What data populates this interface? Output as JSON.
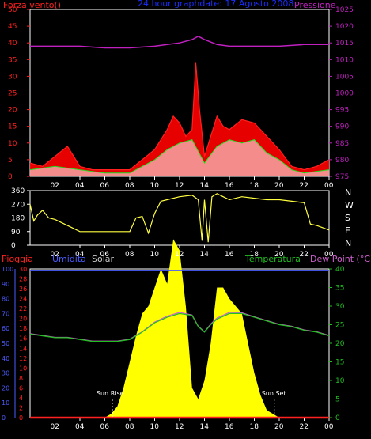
{
  "colors": {
    "wind": "#ff2020",
    "gust_fill": "#ff0000",
    "pressure": "#c020c0",
    "direction": "#ffff40",
    "rain": "#ff2020",
    "humidity": "#4a5cff",
    "solar": "#ffff00",
    "temperature": "#20c020",
    "dew_point": "#d060d0",
    "axis_white": "#ffffff",
    "title_blue": "#1a2cff"
  },
  "header": {
    "left_label": "Forza vento()",
    "title": "24 hour graphdate: 17 Agosto 2008",
    "right_label": "Pressione"
  },
  "legend_bottom": {
    "rain": "Pioggia",
    "humidity": "Umidita",
    "solar": "Solar",
    "temperature": "Temperatura",
    "dew_point": "Dew Point (°C)"
  },
  "compass": [
    "N",
    "W",
    "S",
    "E",
    "N"
  ],
  "annotations": {
    "sunrise": "Sun Rise",
    "sunset": "Sun Set"
  },
  "chart_data": [
    {
      "type": "line",
      "name": "wind-pressure",
      "x_ticks": [
        "02",
        "04",
        "06",
        "08",
        "10",
        "12",
        "14",
        "16",
        "18",
        "20",
        "22",
        "00"
      ],
      "y_left": {
        "label": "Forza vento()",
        "range": [
          0,
          50
        ],
        "ticks": [
          0,
          5,
          10,
          15,
          20,
          25,
          30,
          35,
          40,
          45,
          50
        ]
      },
      "y_right": {
        "label": "Pressione",
        "range": [
          975,
          1025
        ],
        "ticks": [
          975,
          980,
          985,
          990,
          995,
          1000,
          1005,
          1010,
          1015,
          1020,
          1025
        ]
      },
      "series": [
        {
          "key": "gust",
          "x": [
            0,
            1,
            2,
            3,
            4,
            5,
            6,
            7,
            8,
            9,
            10,
            11,
            11.5,
            12,
            12.5,
            13,
            13.3,
            13.6,
            14,
            14.5,
            15,
            15.5,
            16,
            17,
            18,
            19,
            20,
            21,
            22,
            23,
            24
          ],
          "values": [
            4,
            3,
            6,
            9,
            3,
            2,
            2,
            2,
            2,
            5,
            8,
            14,
            18,
            16,
            12,
            14,
            34,
            20,
            6,
            12,
            18,
            15,
            14,
            17,
            16,
            12,
            8,
            3,
            2,
            3,
            5
          ]
        },
        {
          "key": "average",
          "x": [
            0,
            2,
            4,
            6,
            8,
            9,
            10,
            11,
            12,
            13,
            14,
            15,
            16,
            17,
            18,
            19,
            20,
            21,
            22,
            24
          ],
          "values": [
            2,
            3,
            2,
            1,
            1,
            3,
            5,
            8,
            10,
            11,
            4,
            9,
            11,
            10,
            11,
            7,
            5,
            2,
            1,
            2
          ]
        },
        {
          "key": "pressure",
          "x": [
            0,
            2,
            4,
            6,
            8,
            10,
            11,
            12,
            13,
            13.5,
            14,
            15,
            16,
            18,
            20,
            22,
            24
          ],
          "values": [
            1014,
            1014,
            1014,
            1013.5,
            1013.5,
            1014,
            1014.5,
            1015,
            1016,
            1017,
            1016,
            1014.5,
            1014,
            1014,
            1014,
            1014.5,
            1014.5
          ]
        }
      ]
    },
    {
      "type": "line",
      "name": "wind-direction",
      "x_ticks": [
        "02",
        "04",
        "06",
        "08",
        "10",
        "12",
        "14",
        "16",
        "18",
        "20",
        "22",
        "00"
      ],
      "y": {
        "range": [
          0,
          360
        ],
        "ticks": [
          0,
          90,
          180,
          270,
          360
        ]
      },
      "series": [
        {
          "key": "direction",
          "x": [
            0,
            0.3,
            0.6,
            1,
            1.5,
            2,
            2.5,
            3,
            4,
            5,
            6,
            7,
            7.5,
            8,
            8.5,
            9,
            9.5,
            10,
            10.5,
            11,
            12,
            13,
            13.5,
            13.8,
            14,
            14.3,
            14.6,
            15,
            15.5,
            16,
            17,
            18,
            19,
            20,
            21,
            22,
            22.5,
            23,
            24
          ],
          "values": [
            270,
            160,
            200,
            230,
            180,
            170,
            150,
            130,
            90,
            90,
            90,
            90,
            90,
            90,
            180,
            190,
            80,
            210,
            290,
            300,
            320,
            330,
            300,
            30,
            300,
            20,
            320,
            340,
            320,
            300,
            320,
            310,
            300,
            300,
            290,
            280,
            140,
            130,
            100
          ]
        }
      ]
    },
    {
      "type": "area",
      "name": "solar-temperature",
      "x_ticks": [
        "02",
        "04",
        "06",
        "08",
        "10",
        "12",
        "14",
        "16",
        "18",
        "20",
        "22",
        "00"
      ],
      "y_left": {
        "range": [
          0,
          100
        ],
        "ticks": [
          0,
          10,
          20,
          30,
          40,
          50,
          60,
          70,
          80,
          90,
          100
        ]
      },
      "y_rain": {
        "range": [
          0,
          30
        ],
        "ticks": [
          0,
          2,
          4,
          6,
          8,
          10,
          12,
          14,
          16,
          18,
          20,
          22,
          24,
          26,
          28,
          30
        ]
      },
      "y_right": {
        "range": [
          0,
          40
        ],
        "ticks": [
          0,
          5,
          10,
          15,
          20,
          25,
          30,
          35,
          40
        ]
      },
      "series": [
        {
          "key": "solar",
          "x": [
            0,
            6,
            6.5,
            7,
            7.5,
            8,
            8.5,
            9,
            9.5,
            10,
            10.5,
            11,
            11.5,
            12,
            12.5,
            13,
            13.5,
            14,
            14.5,
            15,
            15.5,
            16,
            16.5,
            17,
            17.5,
            18,
            18.5,
            19,
            19.5,
            20,
            24
          ],
          "values": [
            0,
            0,
            1,
            3,
            8,
            15,
            22,
            28,
            30,
            35,
            40,
            36,
            48,
            45,
            30,
            8,
            5,
            10,
            20,
            35,
            35,
            32,
            30,
            28,
            20,
            12,
            6,
            2,
            1,
            0,
            0
          ]
        },
        {
          "key": "temperature",
          "x": [
            0,
            1,
            2,
            3,
            4,
            5,
            6,
            7,
            8,
            9,
            10,
            11,
            12,
            13,
            13.5,
            14,
            14.5,
            15,
            16,
            17,
            18,
            19,
            20,
            21,
            22,
            23,
            24
          ],
          "values": [
            22.5,
            22,
            21.5,
            21.5,
            21,
            20.5,
            20.5,
            20.5,
            21,
            23,
            25.5,
            27,
            28,
            27.5,
            24.5,
            23,
            25,
            26.5,
            28,
            28,
            27,
            26,
            25,
            24.5,
            23.5,
            23,
            22
          ]
        },
        {
          "key": "dew_point",
          "x": [
            0,
            1,
            2,
            3,
            4,
            5,
            6,
            7,
            8,
            9,
            10,
            11,
            12,
            13,
            13.5,
            14,
            14.5,
            15,
            16,
            17,
            18,
            19,
            20,
            21,
            22,
            23,
            24
          ],
          "values": [
            22.6,
            22.1,
            21.6,
            21.6,
            21.1,
            20.6,
            20.6,
            20.6,
            21.1,
            23.1,
            25.7,
            27.3,
            28.3,
            27.6,
            24.6,
            23.1,
            25.2,
            26.8,
            28.3,
            28.2,
            27.1,
            26.1,
            25.1,
            24.6,
            23.6,
            23.1,
            22.1
          ]
        },
        {
          "key": "humidity",
          "x": [
            0,
            24
          ],
          "values": [
            99,
            99
          ]
        },
        {
          "key": "rain",
          "x": [
            0,
            24
          ],
          "values": [
            0,
            0
          ]
        }
      ]
    }
  ]
}
